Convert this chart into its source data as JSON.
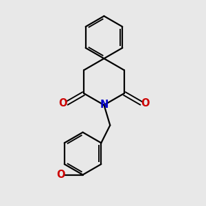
{
  "background_color": "#e8e8e8",
  "bond_color": "#000000",
  "N_color": "#0000cc",
  "O_color": "#cc0000",
  "line_width": 1.6,
  "font_size": 10.5,
  "xlim": [
    0,
    10
  ],
  "ylim": [
    0,
    10
  ]
}
